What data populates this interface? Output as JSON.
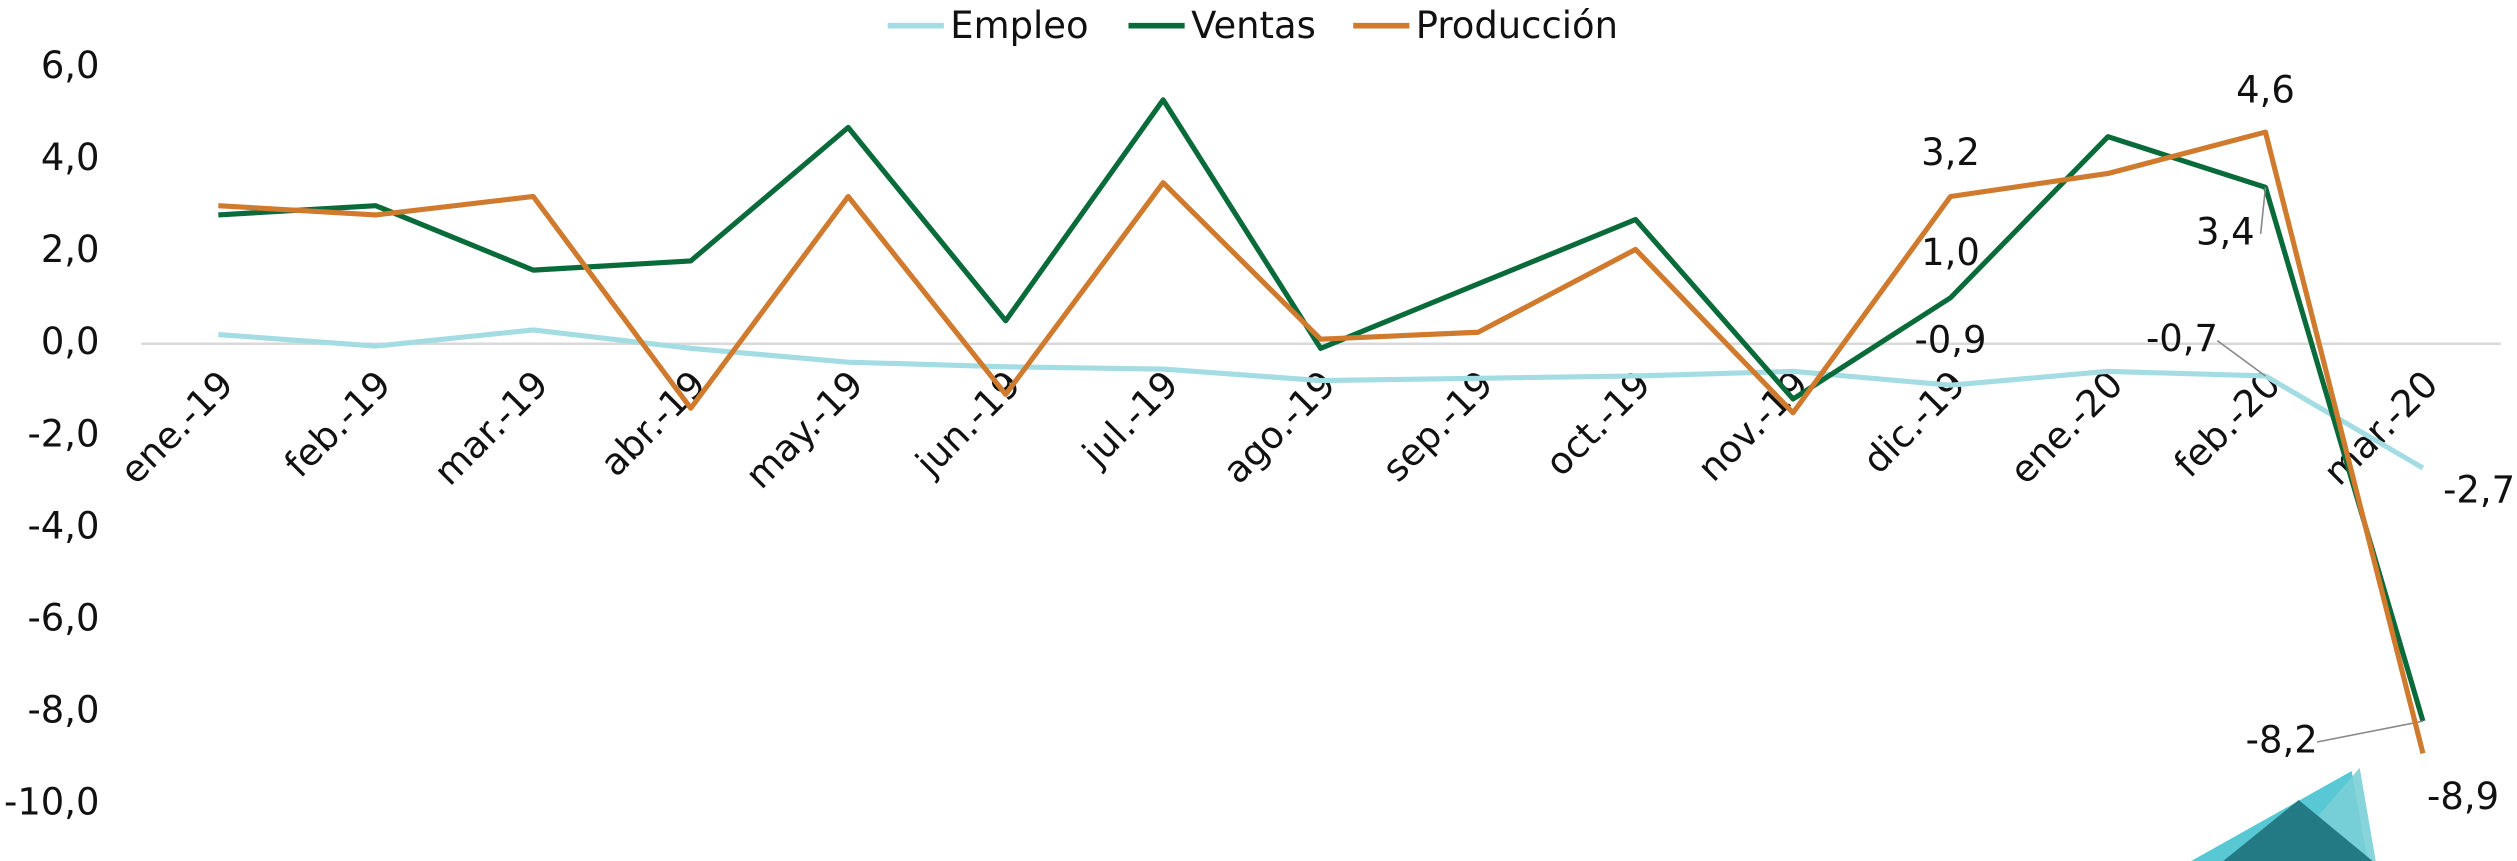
{
  "chart_data": {
    "type": "line",
    "categories": [
      "ene.-19",
      "feb.-19",
      "mar.-19",
      "abr.-19",
      "may.-19",
      "jun.-19",
      "jul.-19",
      "ago.-19",
      "sep.-19",
      "oct.-19",
      "nov.-19",
      "dic.-19",
      "ene.-20",
      "feb.-20",
      "mar.-20"
    ],
    "series": [
      {
        "name": "Empleo",
        "color": "#a3dce3",
        "values": [
          0.2,
          -0.05,
          0.3,
          -0.1,
          -0.4,
          -0.5,
          -0.55,
          -0.8,
          -0.75,
          -0.7,
          -0.6,
          -0.9,
          -0.6,
          -0.7,
          -2.7
        ],
        "value_labels": [
          null,
          null,
          null,
          null,
          null,
          null,
          null,
          null,
          null,
          null,
          null,
          "-0,9",
          null,
          "-0,7",
          "-2,7"
        ]
      },
      {
        "name": "Ventas",
        "color": "#0a6b3a",
        "values": [
          2.8,
          3.0,
          1.6,
          1.8,
          4.7,
          0.5,
          5.3,
          -0.1,
          1.3,
          2.7,
          -1.2,
          1.0,
          4.5,
          3.4,
          -8.2
        ],
        "value_labels": [
          null,
          null,
          null,
          null,
          null,
          null,
          null,
          null,
          null,
          null,
          null,
          "1,0",
          null,
          "3,4",
          "-8,2"
        ]
      },
      {
        "name": "Producción",
        "color": "#d07a2e",
        "values": [
          3.0,
          2.8,
          3.2,
          -1.4,
          3.2,
          -1.1,
          3.5,
          0.1,
          0.25,
          2.05,
          -1.5,
          3.2,
          3.7,
          4.6,
          -8.9
        ],
        "value_labels": [
          null,
          null,
          null,
          null,
          null,
          null,
          null,
          null,
          null,
          null,
          null,
          "3,2",
          null,
          "4,6",
          "-8,9"
        ]
      }
    ],
    "ylim": [
      -11,
      7
    ],
    "yticks": [
      {
        "value": 6,
        "label": "6,0"
      },
      {
        "value": 4,
        "label": "4,0"
      },
      {
        "value": 2,
        "label": "2,0"
      },
      {
        "value": 0,
        "label": "0,0"
      },
      {
        "value": -2,
        "label": "-2,0"
      },
      {
        "value": -4,
        "label": "-4,0"
      },
      {
        "value": -6,
        "label": "-6,0"
      },
      {
        "value": -8,
        "label": "-8,0"
      },
      {
        "value": -10,
        "label": "-10,0"
      }
    ],
    "legend": "top",
    "grid": false
  }
}
